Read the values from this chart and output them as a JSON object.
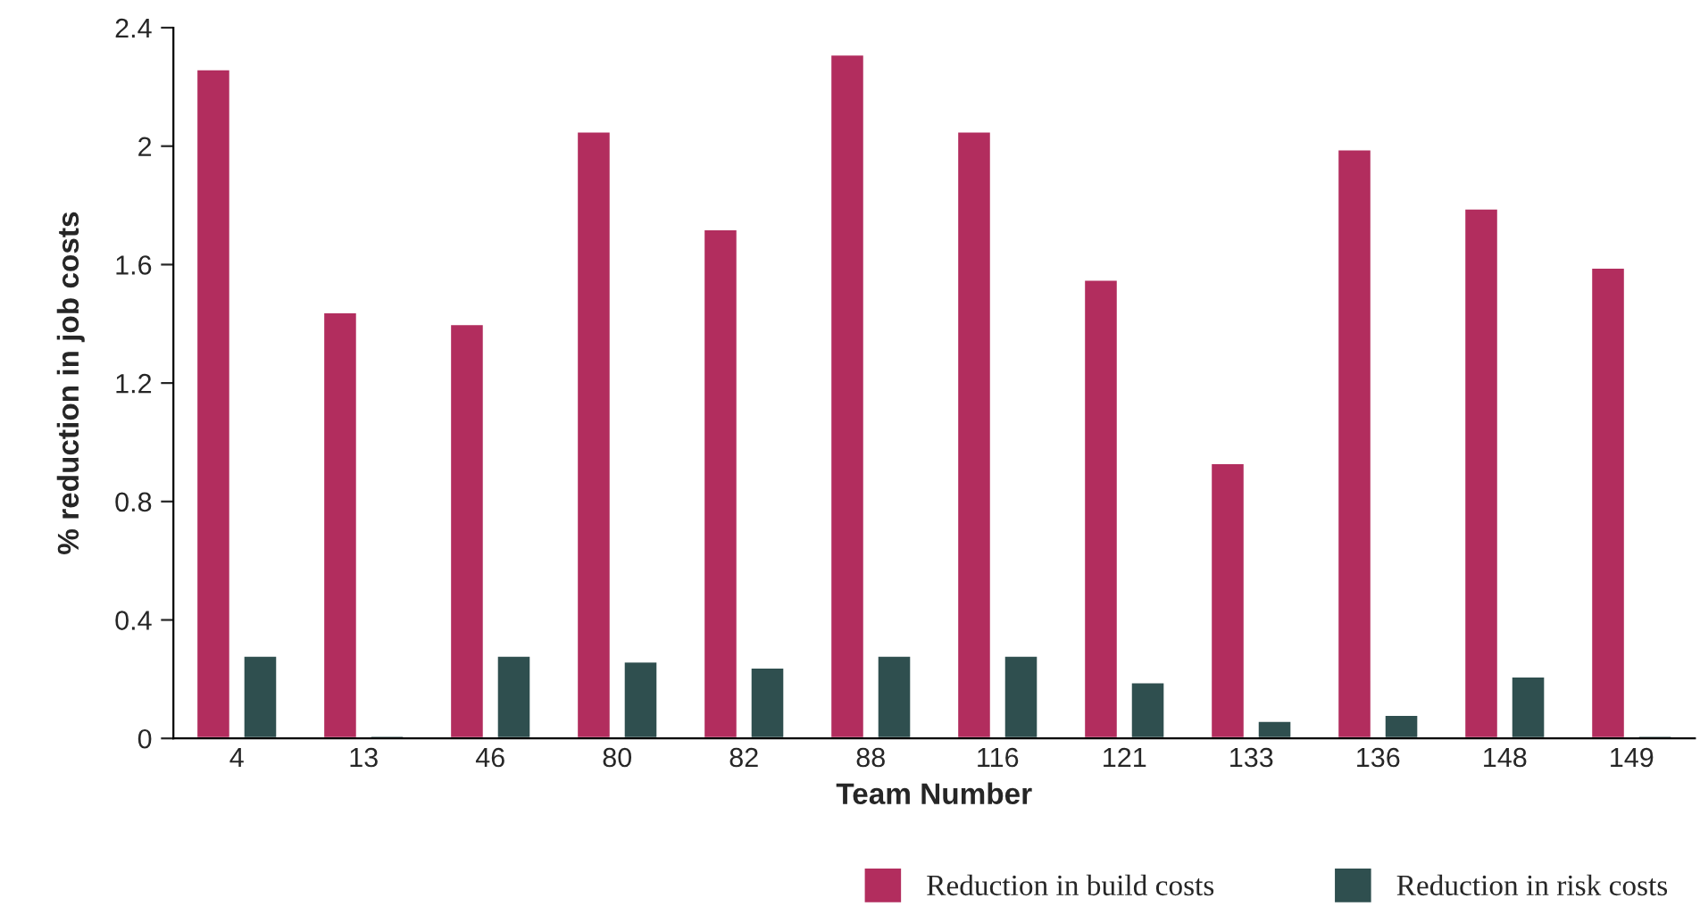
{
  "chart_data": {
    "type": "bar",
    "xlabel": "Team Number",
    "ylabel": "% reduction in job costs",
    "categories": [
      "4",
      "13",
      "46",
      "80",
      "82",
      "88",
      "116",
      "121",
      "133",
      "136",
      "148",
      "149"
    ],
    "series": [
      {
        "name": "Reduction in build costs",
        "color": "#b22d5e",
        "values": [
          2.26,
          1.44,
          1.4,
          2.05,
          1.72,
          2.31,
          2.05,
          1.55,
          0.93,
          1.99,
          1.79,
          1.59
        ]
      },
      {
        "name": "Reduction in risk costs",
        "color": "#2f4f4f",
        "values": [
          0.28,
          0.01,
          0.28,
          0.26,
          0.24,
          0.28,
          0.28,
          0.19,
          0.06,
          0.08,
          0.21,
          0.01
        ]
      }
    ],
    "ylim": [
      0,
      2.4
    ],
    "yticks": [
      0,
      0.4,
      0.8,
      1.2,
      1.6,
      2,
      2.4
    ],
    "grid": false,
    "legend": "bottom right"
  }
}
